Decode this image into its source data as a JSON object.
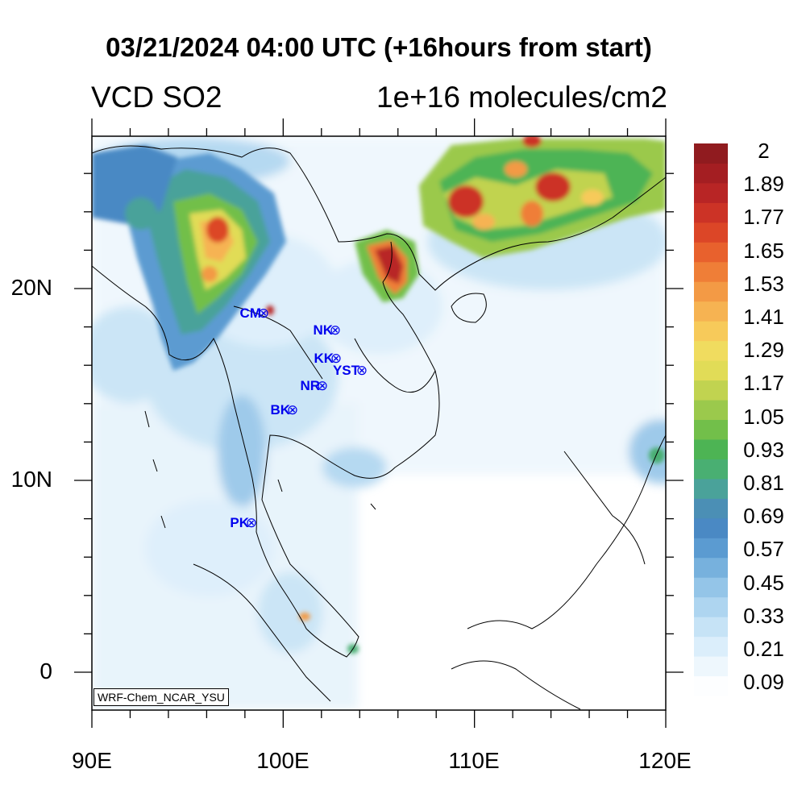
{
  "title": "03/21/2024 04:00 UTC (+16hours from start)",
  "subtitle_left": "VCD SO2",
  "subtitle_right": "1e+16 molecules/cm2",
  "credit": "WRF-Chem_NCAR_YSU",
  "x_ticks": [
    "90E",
    "100E",
    "110E",
    "120E"
  ],
  "y_ticks": [
    "20N",
    "10N",
    "0"
  ],
  "colorbar": {
    "labels": [
      "2",
      "1.89",
      "1.77",
      "1.65",
      "1.53",
      "1.41",
      "1.29",
      "1.17",
      "1.05",
      "0.93",
      "0.81",
      "0.69",
      "0.57",
      "0.45",
      "0.33",
      "0.21",
      "0.09"
    ],
    "colors": [
      "#fdfeff",
      "#eef7fd",
      "#dbeefb",
      "#c6e3f6",
      "#aed5f0",
      "#94c5e8",
      "#77b1dd",
      "#5b9bd1",
      "#4a89c4",
      "#4b8fb5",
      "#4aa29a",
      "#49af72",
      "#4db454",
      "#72bf4a",
      "#9bc94c",
      "#c1d350",
      "#e1dc57",
      "#f0dc5f",
      "#f7ca5a",
      "#f6b352",
      "#f39a45",
      "#ef7e37",
      "#e8612d",
      "#dc4627",
      "#cc3326",
      "#b82525",
      "#a41e22",
      "#901b1f"
    ]
  },
  "stations": [
    {
      "label": "CM"
    },
    {
      "label": "NK"
    },
    {
      "label": "KK"
    },
    {
      "label": "YST"
    },
    {
      "label": "NR"
    },
    {
      "label": "BK"
    },
    {
      "label": "PK"
    }
  ],
  "station_marker": "⊗",
  "colors": {
    "station": "#0000ee",
    "border": "#000000"
  }
}
